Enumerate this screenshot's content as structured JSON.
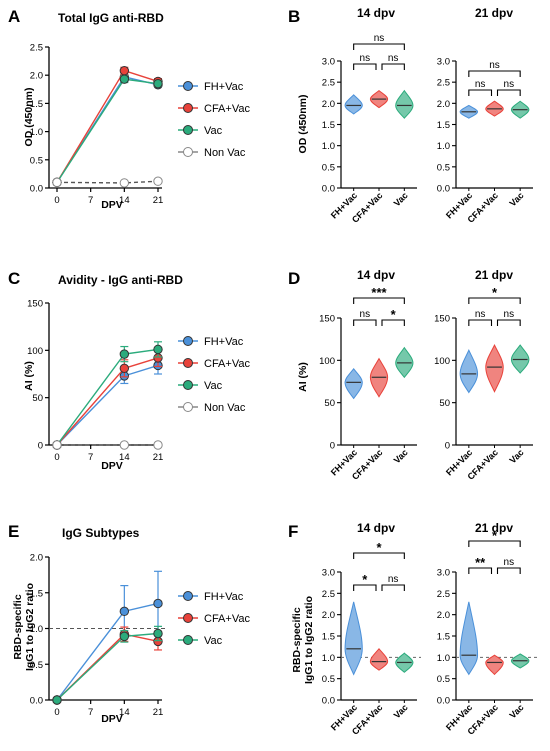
{
  "colors": {
    "fh": "#4a90d9",
    "cfa": "#e8423a",
    "vac": "#2bab7c",
    "nonvac": "#9a9a9a"
  },
  "row1": {
    "line": {
      "panel": "A",
      "title": "Total IgG anti-RBD",
      "ylabel": "OD (450nm)",
      "xlabel": "DPV",
      "yticks": [
        "0.0",
        "0.5",
        "1.0",
        "1.5",
        "2.0",
        "2.5"
      ],
      "xticks": [
        "0",
        "7",
        "14",
        "21"
      ],
      "legend": [
        "FH+Vac",
        "CFA+Vac",
        "Vac",
        "Non Vac"
      ]
    },
    "violin": {
      "panel": "B",
      "ylabel": "OD (450nm)",
      "yticks": [
        "0.0",
        "0.5",
        "1.0",
        "1.5",
        "2.0",
        "2.5",
        "3.0"
      ],
      "groups": [
        "FH+Vac",
        "CFA+Vac",
        "Vac"
      ],
      "left": {
        "title": "14 dpv",
        "sig": [
          "ns",
          "ns",
          "ns"
        ]
      },
      "right": {
        "title": "21 dpv",
        "sig": [
          "ns",
          "ns",
          "ns"
        ]
      }
    }
  },
  "row2": {
    "line": {
      "panel": "C",
      "title": "Avidity - IgG anti-RBD",
      "ylabel": "AI (%)",
      "xlabel": "DPV",
      "yticks": [
        "0",
        "50",
        "100",
        "150"
      ],
      "xticks": [
        "0",
        "7",
        "14",
        "21"
      ],
      "legend": [
        "FH+Vac",
        "CFA+Vac",
        "Vac",
        "Non Vac"
      ]
    },
    "violin": {
      "panel": "D",
      "ylabel": "AI (%)",
      "yticks": [
        "0",
        "50",
        "100",
        "150"
      ],
      "groups": [
        "FH+Vac",
        "CFA+Vac",
        "Vac"
      ],
      "left": {
        "title": "14 dpv",
        "sig": [
          "***",
          "ns",
          "*"
        ]
      },
      "right": {
        "title": "21 dpv",
        "sig": [
          "*",
          "ns",
          "ns"
        ]
      }
    }
  },
  "row3": {
    "line": {
      "panel": "E",
      "title": "IgG Subtypes",
      "ylabel": "RBD-specific",
      "ylabel2": "IgG1 to IgG2 ratio",
      "xlabel": "DPV",
      "yticks": [
        "0.0",
        "0.5",
        "1.0",
        "1.5",
        "2.0"
      ],
      "xticks": [
        "0",
        "7",
        "14",
        "21"
      ],
      "legend": [
        "FH+Vac",
        "CFA+Vac",
        "Vac"
      ]
    },
    "violin": {
      "panel": "F",
      "ylabel": "RBD-specific",
      "ylabel2": "IgG1 to IgG2 ratio",
      "yticks": [
        "0.0",
        "0.5",
        "1.0",
        "1.5",
        "2.0",
        "2.5",
        "3.0"
      ],
      "groups": [
        "FH+Vac",
        "CFA+Vac",
        "Vac"
      ],
      "left": {
        "title": "14 dpv",
        "sig": [
          "*",
          "*",
          "ns"
        ]
      },
      "right": {
        "title": "21 dpv",
        "sig": [
          "*",
          "**",
          "ns"
        ]
      }
    }
  },
  "chart_data": [
    {
      "type": "line",
      "panel": "A",
      "title": "Total IgG anti-RBD",
      "xlabel": "DPV",
      "ylabel": "OD (450nm)",
      "ylim": [
        0,
        2.5
      ],
      "x": [
        0,
        14,
        21
      ],
      "series": [
        {
          "name": "FH+Vac",
          "values": [
            0.1,
            1.97,
            1.83
          ],
          "err": [
            0,
            0.08,
            0.04
          ]
        },
        {
          "name": "CFA+Vac",
          "values": [
            0.1,
            2.08,
            1.89
          ],
          "err": [
            0,
            0.06,
            0.05
          ]
        },
        {
          "name": "Vac",
          "values": [
            0.1,
            1.93,
            1.85
          ],
          "err": [
            0,
            0.06,
            0.05
          ]
        },
        {
          "name": "Non Vac",
          "values": [
            0.1,
            0.09,
            0.12
          ],
          "err": [
            0,
            0,
            0
          ],
          "dashed": true
        }
      ]
    },
    {
      "type": "violin",
      "panel": "B",
      "title": "14 dpv",
      "ylabel": "OD (450nm)",
      "ylim": [
        0,
        3
      ],
      "categories": [
        "FH+Vac",
        "CFA+Vac",
        "Vac"
      ],
      "medians": [
        1.95,
        2.1,
        1.95
      ],
      "range": [
        [
          1.75,
          2.2
        ],
        [
          1.9,
          2.3
        ],
        [
          1.65,
          2.3
        ]
      ],
      "significance": [
        "ns",
        "ns",
        "ns"
      ]
    },
    {
      "type": "violin",
      "panel": "B",
      "title": "21 dpv",
      "ylim": [
        0,
        3
      ],
      "categories": [
        "FH+Vac",
        "CFA+Vac",
        "Vac"
      ],
      "medians": [
        1.8,
        1.87,
        1.85
      ],
      "range": [
        [
          1.65,
          1.95
        ],
        [
          1.7,
          2.05
        ],
        [
          1.65,
          2.05
        ]
      ],
      "significance": [
        "ns",
        "ns",
        "ns"
      ]
    },
    {
      "type": "line",
      "panel": "C",
      "title": "Avidity - IgG anti-RBD",
      "xlabel": "DPV",
      "ylabel": "AI (%)",
      "ylim": [
        0,
        150
      ],
      "x": [
        0,
        14,
        21
      ],
      "series": [
        {
          "name": "FH+Vac",
          "values": [
            0,
            73,
            84
          ],
          "err": [
            0,
            8,
            9
          ]
        },
        {
          "name": "CFA+Vac",
          "values": [
            0,
            81,
            92
          ],
          "err": [
            0,
            9,
            9
          ]
        },
        {
          "name": "Vac",
          "values": [
            0,
            96,
            101
          ],
          "err": [
            0,
            8,
            8
          ]
        },
        {
          "name": "Non Vac",
          "values": [
            0,
            0,
            0
          ],
          "err": [
            0,
            0,
            0
          ],
          "dashed": true
        }
      ]
    },
    {
      "type": "violin",
      "panel": "D",
      "title": "14 dpv",
      "ylabel": "AI (%)",
      "ylim": [
        0,
        150
      ],
      "categories": [
        "FH+Vac",
        "CFA+Vac",
        "Vac"
      ],
      "medians": [
        74,
        80,
        97
      ],
      "range": [
        [
          55,
          90
        ],
        [
          57,
          102
        ],
        [
          80,
          115
        ]
      ],
      "significance": [
        "***",
        "ns",
        "*"
      ]
    },
    {
      "type": "violin",
      "panel": "D",
      "title": "21 dpv",
      "ylim": [
        0,
        150
      ],
      "categories": [
        "FH+Vac",
        "CFA+Vac",
        "Vac"
      ],
      "medians": [
        84,
        92,
        101
      ],
      "range": [
        [
          62,
          112
        ],
        [
          63,
          118
        ],
        [
          85,
          118
        ]
      ],
      "significance": [
        "*",
        "ns",
        "ns"
      ]
    },
    {
      "type": "line",
      "panel": "E",
      "title": "IgG Subtypes",
      "xlabel": "DPV",
      "ylabel": "RBD-specific IgG1 to IgG2 ratio",
      "ylim": [
        0,
        2
      ],
      "x": [
        0,
        14,
        21
      ],
      "reference_line": 1.0,
      "series": [
        {
          "name": "FH+Vac",
          "values": [
            0,
            1.24,
            1.35
          ],
          "err": [
            0,
            0.36,
            0.45
          ]
        },
        {
          "name": "CFA+Vac",
          "values": [
            0,
            0.92,
            0.82
          ],
          "err": [
            0,
            0.1,
            0.12
          ]
        },
        {
          "name": "Vac",
          "values": [
            0,
            0.89,
            0.93
          ],
          "err": [
            0,
            0.08,
            0.1
          ]
        }
      ]
    },
    {
      "type": "violin",
      "panel": "F",
      "title": "14 dpv",
      "ylabel": "RBD-specific IgG1 to IgG2 ratio",
      "ylim": [
        0,
        3
      ],
      "reference_line": 1.0,
      "categories": [
        "FH+Vac",
        "CFA+Vac",
        "Vac"
      ],
      "medians": [
        1.2,
        0.9,
        0.88
      ],
      "range": [
        [
          0.6,
          2.3
        ],
        [
          0.7,
          1.2
        ],
        [
          0.65,
          1.1
        ]
      ],
      "significance": [
        "*",
        "*",
        "ns"
      ]
    },
    {
      "type": "violin",
      "panel": "F",
      "title": "21 dpv",
      "ylim": [
        0,
        3
      ],
      "reference_line": 1.0,
      "categories": [
        "FH+Vac",
        "CFA+Vac",
        "Vac"
      ],
      "medians": [
        1.05,
        0.88,
        0.92
      ],
      "range": [
        [
          0.6,
          2.3
        ],
        [
          0.6,
          1.05
        ],
        [
          0.75,
          1.08
        ]
      ],
      "significance": [
        "*",
        "**",
        "ns"
      ]
    }
  ]
}
